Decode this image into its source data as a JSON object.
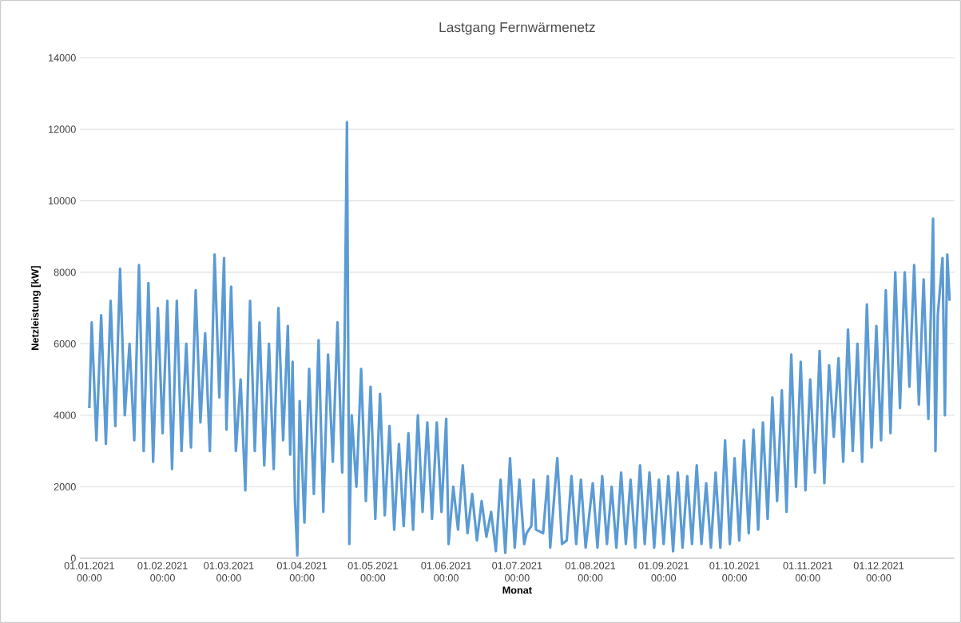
{
  "chart_data": {
    "type": "line",
    "title": "Lastgang Fernwärmenetz",
    "xlabel": "Monat",
    "ylabel": "Netzleistung [kW]",
    "x": [
      "2021-01-01",
      "2021-01-02",
      "2021-01-04",
      "2021-01-06",
      "2021-01-08",
      "2021-01-10",
      "2021-01-12",
      "2021-01-14",
      "2021-01-16",
      "2021-01-18",
      "2021-01-20",
      "2021-01-22",
      "2021-01-24",
      "2021-01-26",
      "2021-01-28",
      "2021-01-30",
      "2021-02-01",
      "2021-02-03",
      "2021-02-05",
      "2021-02-07",
      "2021-02-09",
      "2021-02-11",
      "2021-02-13",
      "2021-02-15",
      "2021-02-17",
      "2021-02-19",
      "2021-02-21",
      "2021-02-23",
      "2021-02-25",
      "2021-02-27",
      "2021-02-28",
      "2021-03-02",
      "2021-03-04",
      "2021-03-06",
      "2021-03-08",
      "2021-03-10",
      "2021-03-12",
      "2021-03-14",
      "2021-03-16",
      "2021-03-18",
      "2021-03-20",
      "2021-03-22",
      "2021-03-24",
      "2021-03-26",
      "2021-03-27",
      "2021-03-28",
      "2021-03-29",
      "2021-03-30",
      "2021-03-31",
      "2021-04-02",
      "2021-04-04",
      "2021-04-06",
      "2021-04-08",
      "2021-04-10",
      "2021-04-12",
      "2021-04-14",
      "2021-04-16",
      "2021-04-18",
      "2021-04-19",
      "2021-04-20",
      "2021-04-21",
      "2021-04-22",
      "2021-04-24",
      "2021-04-26",
      "2021-04-28",
      "2021-04-30",
      "2021-05-02",
      "2021-05-04",
      "2021-05-06",
      "2021-05-08",
      "2021-05-10",
      "2021-05-12",
      "2021-05-14",
      "2021-05-16",
      "2021-05-18",
      "2021-05-20",
      "2021-05-22",
      "2021-05-24",
      "2021-05-26",
      "2021-05-28",
      "2021-05-30",
      "2021-06-01",
      "2021-06-02",
      "2021-06-04",
      "2021-06-06",
      "2021-06-08",
      "2021-06-10",
      "2021-06-12",
      "2021-06-14",
      "2021-06-16",
      "2021-06-18",
      "2021-06-20",
      "2021-06-22",
      "2021-06-24",
      "2021-06-26",
      "2021-06-28",
      "2021-06-30",
      "2021-07-02",
      "2021-07-04",
      "2021-07-05",
      "2021-07-07",
      "2021-07-08",
      "2021-07-09",
      "2021-07-12",
      "2021-07-14",
      "2021-07-15",
      "2021-07-18",
      "2021-07-20",
      "2021-07-22",
      "2021-07-24",
      "2021-07-26",
      "2021-07-28",
      "2021-07-30",
      "2021-08-02",
      "2021-08-04",
      "2021-08-06",
      "2021-08-08",
      "2021-08-10",
      "2021-08-12",
      "2021-08-14",
      "2021-08-16",
      "2021-08-18",
      "2021-08-20",
      "2021-08-22",
      "2021-08-24",
      "2021-08-26",
      "2021-08-28",
      "2021-08-30",
      "2021-09-01",
      "2021-09-03",
      "2021-09-05",
      "2021-09-07",
      "2021-09-09",
      "2021-09-11",
      "2021-09-13",
      "2021-09-15",
      "2021-09-17",
      "2021-09-19",
      "2021-09-21",
      "2021-09-23",
      "2021-09-25",
      "2021-09-27",
      "2021-09-29",
      "2021-10-01",
      "2021-10-03",
      "2021-10-05",
      "2021-10-07",
      "2021-10-09",
      "2021-10-11",
      "2021-10-13",
      "2021-10-15",
      "2021-10-17",
      "2021-10-19",
      "2021-10-21",
      "2021-10-23",
      "2021-10-25",
      "2021-10-27",
      "2021-10-29",
      "2021-10-31",
      "2021-11-02",
      "2021-11-04",
      "2021-11-06",
      "2021-11-08",
      "2021-11-10",
      "2021-11-12",
      "2021-11-14",
      "2021-11-16",
      "2021-11-18",
      "2021-11-20",
      "2021-11-22",
      "2021-11-24",
      "2021-11-26",
      "2021-11-28",
      "2021-11-30",
      "2021-12-02",
      "2021-12-04",
      "2021-12-06",
      "2021-12-08",
      "2021-12-10",
      "2021-12-12",
      "2021-12-14",
      "2021-12-16",
      "2021-12-18",
      "2021-12-20",
      "2021-12-22",
      "2021-12-24",
      "2021-12-25",
      "2021-12-26",
      "2021-12-28",
      "2021-12-29",
      "2021-12-30",
      "2021-12-31"
    ],
    "series": [
      {
        "color": "#5b9bd5",
        "values": [
          4200,
          6600,
          3300,
          6800,
          3200,
          7200,
          3700,
          8100,
          4000,
          6000,
          3300,
          8200,
          3000,
          7700,
          2700,
          7000,
          3500,
          7200,
          2500,
          7200,
          3000,
          6000,
          3100,
          7500,
          3800,
          6300,
          3000,
          8500,
          4500,
          8400,
          3600,
          7600,
          3000,
          5000,
          1900,
          7200,
          3000,
          6600,
          2600,
          6000,
          2500,
          7000,
          3300,
          6500,
          2900,
          5500,
          1600,
          80,
          4400,
          1000,
          5300,
          1800,
          6100,
          1300,
          5700,
          2700,
          6600,
          2400,
          6000,
          12200,
          400,
          4000,
          2000,
          5300,
          1600,
          4800,
          1100,
          4600,
          1200,
          3700,
          800,
          3200,
          900,
          3500,
          800,
          4000,
          1300,
          3800,
          1100,
          3800,
          1300,
          3900,
          400,
          2000,
          800,
          2600,
          700,
          1800,
          500,
          1600,
          600,
          1300,
          200,
          2200,
          150,
          2800,
          300,
          2200,
          400,
          700,
          900,
          2200,
          800,
          700,
          2300,
          300,
          2800,
          400,
          500,
          2300,
          400,
          2200,
          300,
          2100,
          300,
          2300,
          400,
          2000,
          300,
          2400,
          400,
          2200,
          300,
          2600,
          400,
          2400,
          300,
          2200,
          400,
          2300,
          200,
          2400,
          300,
          2300,
          400,
          2600,
          400,
          2100,
          300,
          2400,
          300,
          3300,
          400,
          2800,
          500,
          3300,
          700,
          3600,
          800,
          3800,
          1100,
          4500,
          1600,
          4700,
          1300,
          5700,
          2000,
          5500,
          1900,
          5000,
          2400,
          5800,
          2100,
          5400,
          3400,
          5600,
          2700,
          6400,
          3000,
          6000,
          2700,
          7100,
          3100,
          6500,
          3300,
          7500,
          3500,
          8000,
          4200,
          8000,
          4800,
          8200,
          4300,
          7800,
          3900,
          9500,
          3000,
          6800,
          8400,
          4000,
          8500,
          7200
        ]
      }
    ],
    "xlim": [
      "2020-12-28",
      "2022-01-02"
    ],
    "xticks": [
      {
        "value": "2021-01-01",
        "label": "01.01.2021 00:00"
      },
      {
        "value": "2021-02-01",
        "label": "01.02.2021 00:00"
      },
      {
        "value": "2021-03-01",
        "label": "01.03.2021 00:00"
      },
      {
        "value": "2021-04-01",
        "label": "01.04.2021 00:00"
      },
      {
        "value": "2021-05-01",
        "label": "01.05.2021 00:00"
      },
      {
        "value": "2021-06-01",
        "label": "01.06.2021 00:00"
      },
      {
        "value": "2021-07-01",
        "label": "01.07.2021 00:00"
      },
      {
        "value": "2021-08-01",
        "label": "01.08.2021 00:00"
      },
      {
        "value": "2021-09-01",
        "label": "01.09.2021 00:00"
      },
      {
        "value": "2021-10-01",
        "label": "01.10.2021 00:00"
      },
      {
        "value": "2021-11-01",
        "label": "01.11.2021 00:00"
      },
      {
        "value": "2021-12-01",
        "label": "01.12.2021 00:00"
      }
    ],
    "ylim": [
      0,
      14000
    ],
    "yticks": [
      0,
      2000,
      4000,
      6000,
      8000,
      10000,
      12000,
      14000
    ],
    "grid": "y",
    "marker": "none",
    "line_style": "solid"
  }
}
